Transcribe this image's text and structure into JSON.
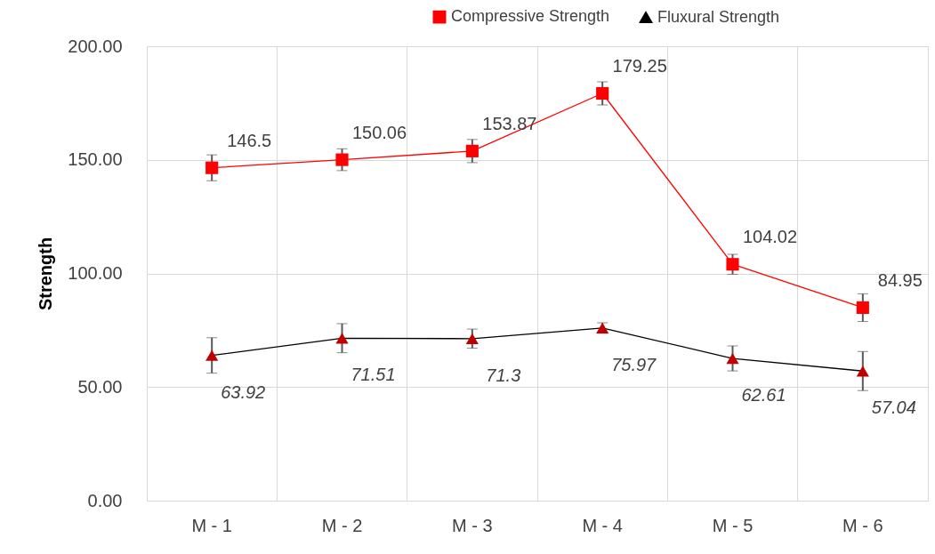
{
  "chart_data": {
    "type": "line",
    "categories": [
      "M - 1",
      "M - 2",
      "M - 3",
      "M - 4",
      "M - 5",
      "M - 6"
    ],
    "ylabel": "Strength",
    "ylim": [
      0,
      200
    ],
    "yticks": [
      {
        "value": 0,
        "label": "0.00"
      },
      {
        "value": 50,
        "label": "50.00"
      },
      {
        "value": 100,
        "label": "100.00"
      },
      {
        "value": 150,
        "label": "150.00"
      },
      {
        "value": 200,
        "label": "200.00"
      }
    ],
    "series": [
      {
        "name": "Compressive Strength",
        "color": "#ff0000",
        "marker": "square",
        "values": [
          146.5,
          150.06,
          153.87,
          179.25,
          104.02,
          84.95
        ],
        "errors": [
          5.7,
          4.8,
          5.1,
          5.1,
          4.4,
          6.1
        ]
      },
      {
        "name": "Fluxural Strength",
        "color": "#000000",
        "marker": "triangle",
        "values": [
          63.92,
          71.51,
          71.3,
          75.97,
          62.61,
          57.04
        ],
        "errors": [
          7.8,
          6.4,
          4.2,
          2.3,
          5.5,
          8.6
        ]
      }
    ],
    "data_labels": true,
    "grid": true,
    "legend": "top right"
  }
}
